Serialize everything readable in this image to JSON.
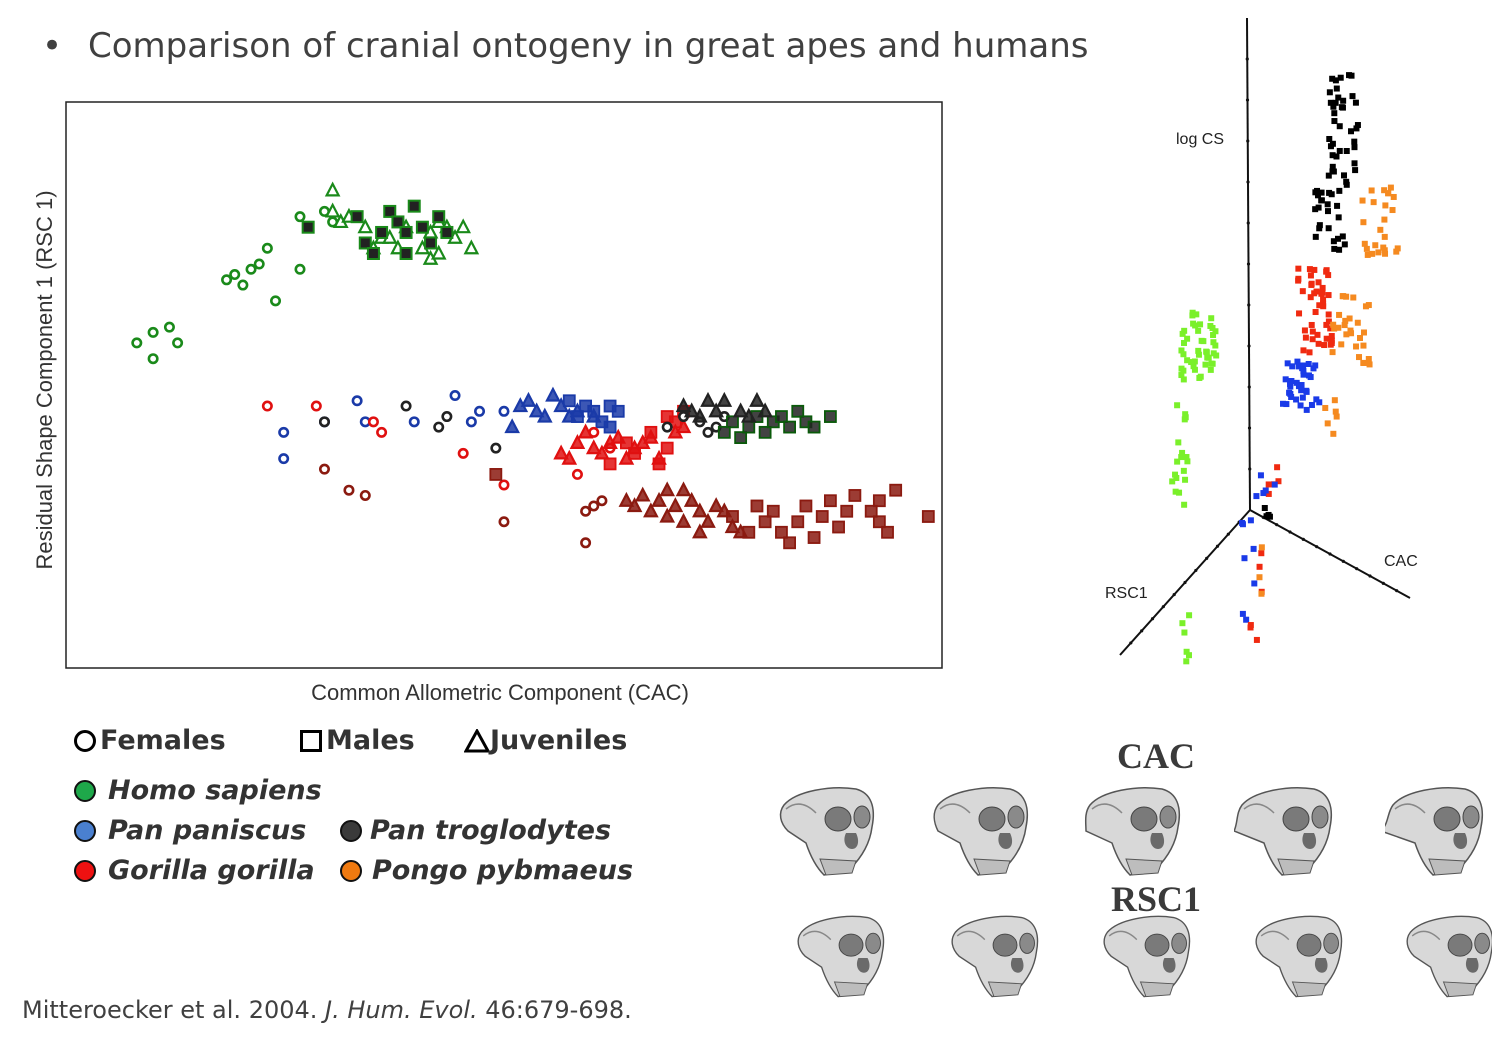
{
  "slide": {
    "bullet": "•",
    "title": "Comparison of cranial ontogeny in great apes and humans"
  },
  "chart_data": [
    {
      "type": "scatter",
      "xlabel": "Common Allometric Component (CAC)",
      "ylabel": "Residual Shape Component 1 (RSC 1)",
      "xlim": [
        0,
        100
      ],
      "ylim": [
        0,
        100
      ],
      "ticks": "none",
      "grid": false,
      "series": [
        {
          "name": "Homo sapiens",
          "color": "#1a8a1a",
          "females": [
            [
              5,
              58
            ],
            [
              7,
              60
            ],
            [
              9,
              61
            ],
            [
              10,
              58
            ],
            [
              7,
              55
            ],
            [
              16,
              70
            ],
            [
              17,
              71
            ],
            [
              18,
              69
            ],
            [
              19,
              72
            ],
            [
              20,
              73
            ],
            [
              21,
              76
            ],
            [
              22,
              66
            ],
            [
              25,
              72
            ],
            [
              25,
              82
            ],
            [
              28,
              83
            ],
            [
              29,
              81
            ]
          ],
          "juveniles": [
            [
              29,
              87
            ],
            [
              29,
              83
            ],
            [
              30,
              81
            ],
            [
              31,
              82
            ],
            [
              33,
              80
            ],
            [
              34,
              76
            ],
            [
              35,
              78
            ],
            [
              36,
              78
            ],
            [
              37,
              76
            ],
            [
              38,
              80
            ],
            [
              40,
              76
            ],
            [
              41,
              79
            ],
            [
              41,
              74
            ],
            [
              42,
              81
            ],
            [
              43,
              80
            ],
            [
              44,
              78
            ],
            [
              45,
              80
            ],
            [
              46,
              76
            ],
            [
              42,
              75
            ]
          ]
        },
        {
          "name": "Pan paniscus",
          "color": "#1a3aa8",
          "females": [
            [
              23,
              41
            ],
            [
              23,
              36
            ],
            [
              28,
              43
            ],
            [
              32,
              47
            ],
            [
              33,
              43
            ],
            [
              39,
              43
            ],
            [
              44,
              48
            ],
            [
              46,
              43
            ],
            [
              47,
              45
            ],
            [
              50,
              45
            ]
          ],
          "juveniles": [
            [
              51,
              42
            ],
            [
              52,
              46
            ],
            [
              53,
              47
            ],
            [
              54,
              45
            ],
            [
              55,
              44
            ],
            [
              56,
              48
            ],
            [
              57,
              46
            ],
            [
              58,
              44
            ],
            [
              59,
              45
            ],
            [
              61,
              44
            ]
          ],
          "males": [
            [
              58,
              47
            ],
            [
              59,
              44
            ],
            [
              60,
              46
            ],
            [
              61,
              45
            ],
            [
              62,
              43
            ],
            [
              63,
              42
            ],
            [
              63,
              46
            ],
            [
              64,
              45
            ]
          ]
        },
        {
          "name": "Gorilla gorilla",
          "color": "#e01010",
          "females": [
            [
              21,
              46
            ],
            [
              27,
              46
            ],
            [
              34,
              43
            ],
            [
              35,
              41
            ],
            [
              45,
              37
            ],
            [
              50,
              31
            ],
            [
              59,
              33
            ],
            [
              61,
              41
            ],
            [
              63,
              38
            ]
          ],
          "juveniles": [
            [
              57,
              37
            ],
            [
              58,
              36
            ],
            [
              59,
              39
            ],
            [
              60,
              41
            ],
            [
              61,
              38
            ],
            [
              62,
              37
            ],
            [
              63,
              39
            ],
            [
              64,
              40
            ],
            [
              65,
              36
            ],
            [
              66,
              38
            ],
            [
              67,
              39
            ],
            [
              68,
              40
            ],
            [
              69,
              36
            ],
            [
              71,
              41
            ],
            [
              72,
              42
            ]
          ],
          "males": [
            [
              63,
              35
            ],
            [
              65,
              39
            ],
            [
              66,
              37
            ],
            [
              68,
              41
            ],
            [
              69,
              35
            ],
            [
              70,
              38
            ],
            [
              70,
              44
            ],
            [
              71,
              43
            ],
            [
              72,
              45
            ]
          ]
        },
        {
          "name": "Pan troglodytes",
          "color": "#222222",
          "females": [
            [
              28,
              43
            ],
            [
              38,
              46
            ],
            [
              42,
              42
            ],
            [
              43,
              44
            ],
            [
              49,
              38
            ],
            [
              70,
              42
            ],
            [
              72,
              44
            ],
            [
              74,
              43
            ],
            [
              75,
              41
            ],
            [
              76,
              42
            ],
            [
              77,
              44
            ]
          ],
          "juveniles": [
            [
              72,
              46
            ],
            [
              73,
              45
            ],
            [
              74,
              44
            ],
            [
              75,
              47
            ],
            [
              76,
              45
            ],
            [
              77,
              47
            ],
            [
              79,
              45
            ],
            [
              80,
              44
            ],
            [
              81,
              47
            ],
            [
              82,
              45
            ]
          ],
          "males": [
            [
              77,
              41
            ],
            [
              78,
              43
            ],
            [
              79,
              40
            ],
            [
              80,
              42
            ],
            [
              81,
              44
            ],
            [
              82,
              41
            ],
            [
              83,
              43
            ],
            [
              84,
              44
            ],
            [
              85,
              42
            ],
            [
              86,
              45
            ],
            [
              87,
              43
            ],
            [
              88,
              42
            ],
            [
              90,
              44
            ]
          ],
          "males_upper": [
            [
              26,
              80
            ],
            [
              32,
              82
            ],
            [
              33,
              77
            ],
            [
              34,
              75
            ],
            [
              35,
              79
            ],
            [
              36,
              83
            ],
            [
              37,
              81
            ],
            [
              38,
              79
            ],
            [
              38,
              75
            ],
            [
              39,
              84
            ],
            [
              40,
              80
            ],
            [
              41,
              77
            ],
            [
              42,
              82
            ],
            [
              43,
              79
            ]
          ]
        },
        {
          "name": "Pongo pybmaeus",
          "color": "#8b1a10",
          "females": [
            [
              28,
              34
            ],
            [
              31,
              30
            ],
            [
              33,
              29
            ],
            [
              50,
              24
            ],
            [
              60,
              26
            ],
            [
              61,
              27
            ],
            [
              60,
              20
            ],
            [
              62,
              28
            ]
          ],
          "juveniles": [
            [
              65,
              28
            ],
            [
              66,
              27
            ],
            [
              67,
              29
            ],
            [
              68,
              26
            ],
            [
              69,
              28
            ],
            [
              70,
              25
            ],
            [
              71,
              27
            ],
            [
              72,
              30
            ],
            [
              73,
              28
            ],
            [
              74,
              26
            ],
            [
              75,
              24
            ],
            [
              76,
              27
            ],
            [
              77,
              26
            ],
            [
              78,
              23
            ],
            [
              79,
              22
            ],
            [
              70,
              30
            ],
            [
              72,
              24
            ],
            [
              74,
              22
            ]
          ],
          "males": [
            [
              49,
              33
            ],
            [
              78,
              25
            ],
            [
              80,
              22
            ],
            [
              81,
              27
            ],
            [
              82,
              24
            ],
            [
              83,
              26
            ],
            [
              84,
              22
            ],
            [
              85,
              20
            ],
            [
              86,
              24
            ],
            [
              87,
              27
            ],
            [
              88,
              21
            ],
            [
              89,
              25
            ],
            [
              90,
              28
            ],
            [
              91,
              23
            ],
            [
              92,
              26
            ],
            [
              93,
              29
            ],
            [
              95,
              26
            ],
            [
              96,
              28
            ],
            [
              96,
              24
            ],
            [
              97,
              22
            ],
            [
              98,
              30
            ],
            [
              102,
              25
            ]
          ]
        }
      ]
    },
    {
      "type": "scatter",
      "axes": [
        "log CS",
        "RSC1",
        "CAC"
      ]
    }
  ],
  "legend": {
    "shape_items": [
      {
        "label": "Females",
        "shape": "circle"
      },
      {
        "label": "Males",
        "shape": "square"
      },
      {
        "label": "Juveniles",
        "shape": "triangle"
      }
    ],
    "species_left": [
      {
        "label": "Homo sapiens",
        "color": "#1ea84a"
      },
      {
        "label": "Pan paniscus",
        "color": "#4a80d0"
      },
      {
        "label": "Gorilla gorilla",
        "color": "#ee1111"
      }
    ],
    "species_right": [
      {
        "label": "Pan troglodytes",
        "color": "#3a3a3a"
      },
      {
        "label": "Pongo pybmaeus",
        "color": "#f07a10"
      }
    ]
  },
  "skulls": {
    "top_label": "CAC",
    "bottom_label": "RSC1"
  },
  "citation": {
    "authors": "Mitteroecker et al. 2004. ",
    "journal": "J. Hum. Evol.",
    "pages": " 46:679-698."
  },
  "colors_3d": {
    "homo": "#7af02a",
    "paniscus": "#1a3ae8",
    "gorilla": "#f02a10",
    "troglodytes": "#000000",
    "pongo": "#f58a20"
  }
}
